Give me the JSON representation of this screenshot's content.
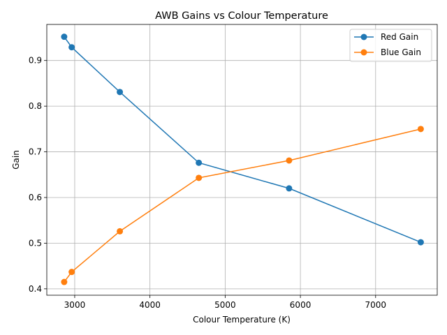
{
  "chart_data": {
    "type": "line",
    "title": "AWB Gains vs Colour Temperature",
    "xlabel": "Colour Temperature (K)",
    "ylabel": "Gain",
    "xlim": [
      2629,
      7819
    ],
    "ylim": [
      0.386,
      0.979
    ],
    "xticks": [
      3000,
      4000,
      5000,
      6000,
      7000
    ],
    "xtick_labels": [
      "3000",
      "4000",
      "5000",
      "6000",
      "7000"
    ],
    "yticks": [
      0.4,
      0.5,
      0.6,
      0.7,
      0.8,
      0.9
    ],
    "ytick_labels": [
      "0.4",
      "0.5",
      "0.6",
      "0.7",
      "0.8",
      "0.9"
    ],
    "grid": true,
    "legend_position": "top-right",
    "x": [
      2860,
      2960,
      3600,
      4650,
      5850,
      7600
    ],
    "series": [
      {
        "name": "Red Gain",
        "color": "#1f77b4",
        "values": [
          0.952,
          0.929,
          0.831,
          0.676,
          0.62,
          0.502
        ]
      },
      {
        "name": "Blue Gain",
        "color": "#ff7f0e",
        "values": [
          0.415,
          0.437,
          0.526,
          0.643,
          0.681,
          0.75
        ]
      }
    ]
  }
}
